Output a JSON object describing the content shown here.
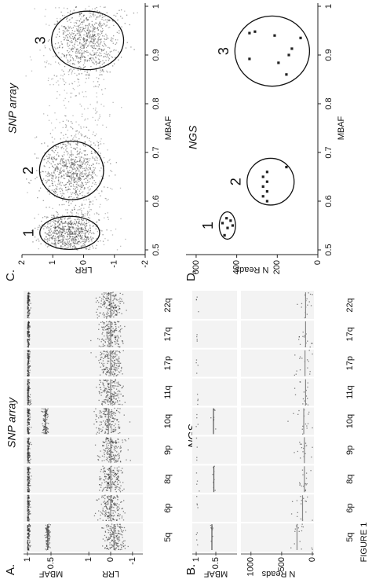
{
  "figure_label": "FIGURE 1",
  "panels": {
    "A": {
      "label": "A.",
      "title": "SNP array",
      "chromosomes": [
        "5q",
        "6p",
        "8q",
        "9p",
        "10q",
        "11q",
        "17p",
        "17q",
        "22q"
      ],
      "mbaf": {
        "axis_label": "MBAF",
        "lim": [
          0,
          1
        ],
        "ticks": [
          1,
          0.5
        ],
        "levels": [
          0.57,
          null,
          null,
          null,
          0.62,
          null,
          null,
          null,
          null
        ]
      },
      "lrr": {
        "axis_label": "LRR",
        "lim": [
          -1.4,
          1.4
        ],
        "ticks": [
          1,
          0,
          -1
        ],
        "levels": [
          -0.15,
          0,
          0,
          0,
          0.1,
          0,
          0,
          0,
          0
        ]
      }
    },
    "B": {
      "label": "B.",
      "title": "NGS",
      "chromosomes": [
        "5q",
        "6p",
        "8q",
        "9p",
        "10q",
        "11q",
        "17p",
        "17q",
        "22q"
      ],
      "mbaf": {
        "axis_label": "MBAF",
        "lim": [
          0,
          1
        ],
        "ticks": [
          1,
          0.5
        ],
        "levels": [
          0.6,
          null,
          0.55,
          null,
          0.56,
          null,
          null,
          null,
          null
        ]
      },
      "reads": {
        "axis_label": "N Reads",
        "lim": [
          0,
          1100
        ],
        "ticks": [
          1000,
          500,
          0
        ],
        "levels": [
          250,
          160,
          130,
          130,
          140,
          110,
          120,
          110,
          110
        ]
      }
    },
    "C": {
      "label": "C.",
      "title": "SNP array",
      "x_label": "MBAF",
      "y_label": "LRR",
      "xlim": [
        0.5,
        1
      ],
      "xticks": [
        0.5,
        0.6,
        0.7,
        0.8,
        0.9,
        1
      ],
      "ylim": [
        -2,
        2
      ],
      "yticks": [
        2,
        1,
        0,
        -1,
        -2
      ],
      "clusters": [
        {
          "label": "1",
          "mbaf": 0.535,
          "lrr": 0.45,
          "mbaf_radius": 0.034,
          "lrr_radius": 0.97
        },
        {
          "label": "2",
          "mbaf": 0.663,
          "lrr": 0.39,
          "mbaf_radius": 0.06,
          "lrr_radius": 1.04
        },
        {
          "label": "3",
          "mbaf": 0.93,
          "lrr": -0.13,
          "mbaf_radius": 0.06,
          "lrr_radius": 1.17
        }
      ]
    },
    "D": {
      "label": "D.",
      "title": "NGS",
      "x_label": "MBAF",
      "y_label": "N Reads",
      "xlim": [
        0.5,
        1
      ],
      "xticks": [
        0.5,
        0.6,
        0.7,
        0.8,
        0.9,
        1
      ],
      "ylim": [
        0,
        650
      ],
      "yticks": [
        600,
        400,
        200,
        0
      ],
      "points": {
        "x": [
          0.53,
          0.545,
          0.555,
          0.56,
          0.565,
          0.55,
          0.6,
          0.61,
          0.62,
          0.63,
          0.64,
          0.65,
          0.66,
          0.67,
          0.945,
          0.948,
          0.94,
          0.935,
          0.913,
          0.9,
          0.884,
          0.86,
          0.892
        ],
        "y": [
          460,
          445,
          470,
          430,
          450,
          420,
          250,
          270,
          250,
          270,
          250,
          270,
          250,
          155,
          337,
          310,
          213,
          85,
          128,
          143,
          194,
          155,
          337
        ]
      },
      "clusters": [
        {
          "label": "1",
          "mbaf": 0.55,
          "reads": 446,
          "mbaf_radius": 0.028,
          "reads_radius": 40
        },
        {
          "label": "2",
          "mbaf": 0.64,
          "reads": 233,
          "mbaf_radius": 0.048,
          "reads_radius": 116
        },
        {
          "label": "3",
          "mbaf": 0.908,
          "reads": 225,
          "mbaf_radius": 0.072,
          "reads_radius": 184
        }
      ]
    }
  }
}
